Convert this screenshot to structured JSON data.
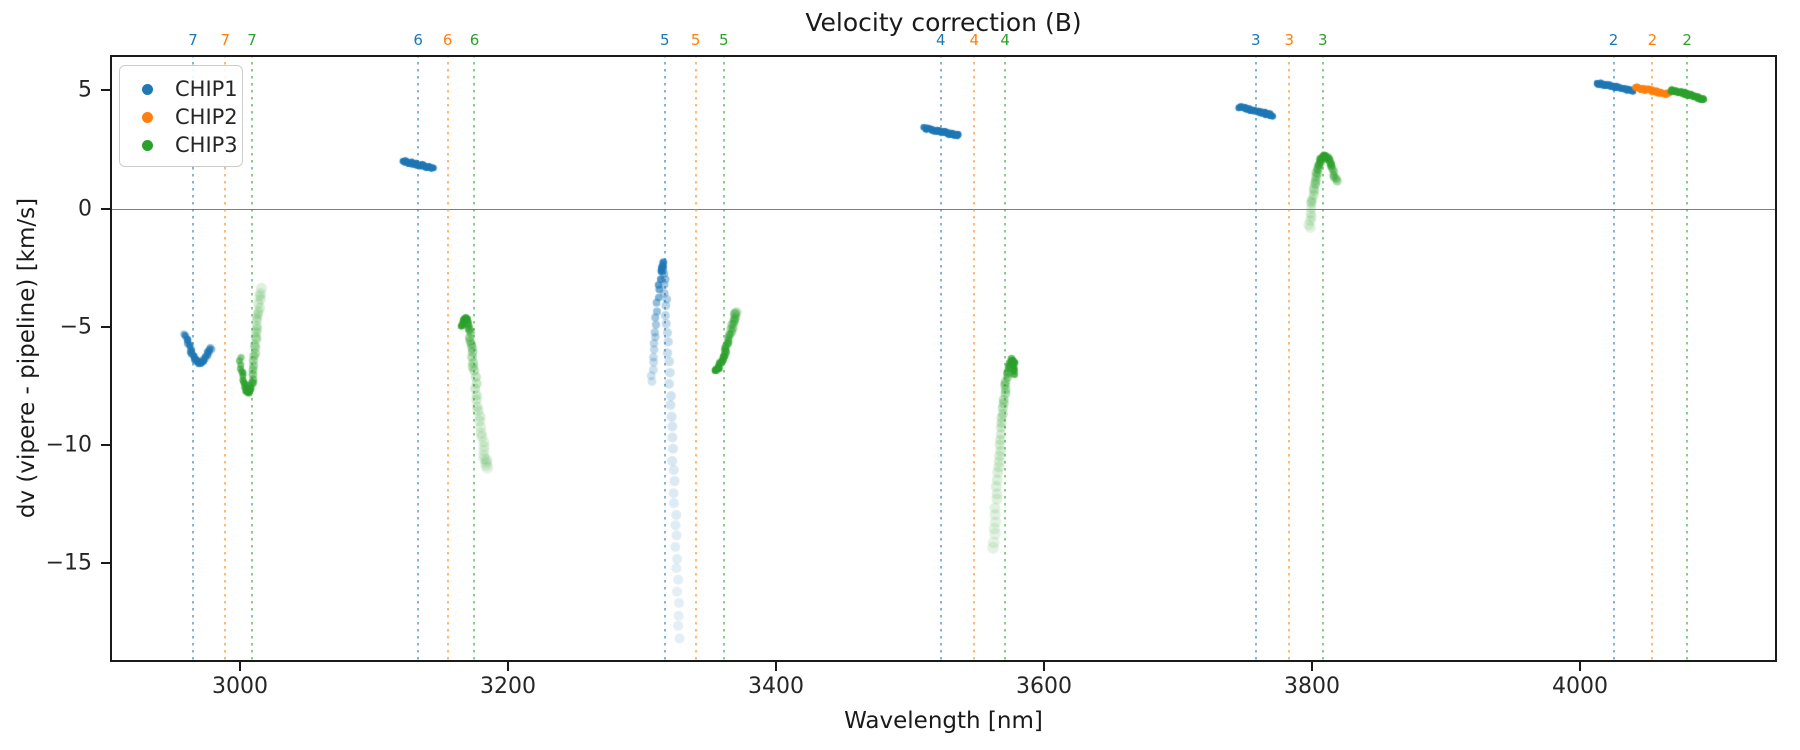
{
  "figure": {
    "title": "Velocity correction (B)"
  },
  "chart_data": {
    "type": "scatter",
    "title": "Velocity correction (B)",
    "xlabel": "Wavelength [nm]",
    "ylabel": "dv (vipere - pipeline) [km/s]",
    "xlim": [
      2903,
      4147
    ],
    "ylim": [
      -19.2,
      6.5
    ],
    "grid": false,
    "zero_line_y": 0,
    "xticks": [
      {
        "value": 3000,
        "label": "3000"
      },
      {
        "value": 3200,
        "label": "3200"
      },
      {
        "value": 3400,
        "label": "3400"
      },
      {
        "value": 3600,
        "label": "3600"
      },
      {
        "value": 3800,
        "label": "3800"
      },
      {
        "value": 4000,
        "label": "4000"
      }
    ],
    "yticks": [
      {
        "value": 5,
        "label": "5"
      },
      {
        "value": 0,
        "label": "0"
      },
      {
        "value": -5,
        "label": "−5"
      },
      {
        "value": -10,
        "label": "−10"
      },
      {
        "value": -15,
        "label": "−15"
      }
    ],
    "colors": {
      "CHIP1": "#1f77b4",
      "CHIP2": "#ff7f0e",
      "CHIP3": "#2ca02c"
    },
    "legend": {
      "position": "upper-left",
      "entries": [
        "CHIP1",
        "CHIP2",
        "CHIP3"
      ]
    },
    "order_markers": [
      {
        "order": "7",
        "chip": "CHIP1",
        "wavelength": 2965
      },
      {
        "order": "7",
        "chip": "CHIP2",
        "wavelength": 2989
      },
      {
        "order": "7",
        "chip": "CHIP3",
        "wavelength": 3009
      },
      {
        "order": "6",
        "chip": "CHIP1",
        "wavelength": 3133
      },
      {
        "order": "6",
        "chip": "CHIP2",
        "wavelength": 3155
      },
      {
        "order": "6",
        "chip": "CHIP3",
        "wavelength": 3175
      },
      {
        "order": "5",
        "chip": "CHIP1",
        "wavelength": 3317
      },
      {
        "order": "5",
        "chip": "CHIP2",
        "wavelength": 3340
      },
      {
        "order": "5",
        "chip": "CHIP3",
        "wavelength": 3361
      },
      {
        "order": "4",
        "chip": "CHIP1",
        "wavelength": 3523
      },
      {
        "order": "4",
        "chip": "CHIP2",
        "wavelength": 3548
      },
      {
        "order": "4",
        "chip": "CHIP3",
        "wavelength": 3571
      },
      {
        "order": "3",
        "chip": "CHIP1",
        "wavelength": 3758
      },
      {
        "order": "3",
        "chip": "CHIP2",
        "wavelength": 3783
      },
      {
        "order": "3",
        "chip": "CHIP3",
        "wavelength": 3808
      },
      {
        "order": "2",
        "chip": "CHIP1",
        "wavelength": 4025
      },
      {
        "order": "2",
        "chip": "CHIP2",
        "wavelength": 4054
      },
      {
        "order": "2",
        "chip": "CHIP3",
        "wavelength": 4080
      }
    ],
    "series": [
      {
        "chip": "CHIP1",
        "order": "7",
        "n": 50,
        "path": [
          [
            2958.5,
            -5.35
          ],
          [
            2961,
            -5.6
          ],
          [
            2964,
            -6.1
          ],
          [
            2967,
            -6.45
          ],
          [
            2970,
            -6.55
          ],
          [
            2973,
            -6.45
          ],
          [
            2976,
            -6.1
          ],
          [
            2978.5,
            -5.9
          ]
        ],
        "alpha": [
          0.45,
          0.6,
          0.8,
          0.85,
          0.7,
          0.55,
          0.5
        ],
        "size": [
          3.5,
          3.5
        ]
      },
      {
        "chip": "CHIP1",
        "order": "6",
        "n": 55,
        "path": [
          [
            3122,
            2.0
          ],
          [
            3133,
            1.85
          ],
          [
            3144,
            1.72
          ]
        ],
        "alpha": [
          0.95,
          0.95
        ],
        "size": [
          3.3,
          3.3
        ]
      },
      {
        "chip": "CHIP1",
        "order": "5",
        "n": 62,
        "path": [
          [
            3307,
            -7.3
          ],
          [
            3308.5,
            -6.2
          ],
          [
            3310,
            -5.0
          ],
          [
            3312,
            -3.7
          ],
          [
            3314,
            -2.6
          ],
          [
            3315.5,
            -2.25
          ],
          [
            3317,
            -3.0
          ],
          [
            3318,
            -4.3
          ],
          [
            3319.5,
            -6.0
          ],
          [
            3321,
            -8.0
          ],
          [
            3322.5,
            -10.0
          ],
          [
            3324,
            -12.0
          ],
          [
            3325.5,
            -14.0
          ],
          [
            3326.5,
            -16.0
          ],
          [
            3327.5,
            -18.2
          ]
        ],
        "alpha": [
          0.2,
          0.3,
          0.5,
          0.95,
          0.5,
          0.3,
          0.22,
          0.18,
          0.15,
          0.13,
          0.12
        ],
        "size": [
          4.5,
          4.2,
          3.8,
          3.6,
          4.2,
          4.6,
          5,
          5,
          5,
          5
        ]
      },
      {
        "chip": "CHIP1",
        "order": "4",
        "n": 55,
        "path": [
          [
            3511,
            3.4
          ],
          [
            3524,
            3.25
          ],
          [
            3536,
            3.1
          ]
        ],
        "alpha": [
          0.95,
          0.95
        ],
        "size": [
          3.3,
          3.3
        ]
      },
      {
        "chip": "CHIP1",
        "order": "3",
        "n": 55,
        "path": [
          [
            3746,
            4.3
          ],
          [
            3758,
            4.12
          ],
          [
            3770,
            3.95
          ]
        ],
        "alpha": [
          0.95,
          0.95
        ],
        "size": [
          3.3,
          3.3
        ]
      },
      {
        "chip": "CHIP1",
        "order": "2",
        "n": 55,
        "path": [
          [
            4013,
            5.3
          ],
          [
            4026,
            5.15
          ],
          [
            4039,
            5.0
          ]
        ],
        "alpha": [
          0.95,
          0.95
        ],
        "size": [
          3.3,
          3.3
        ]
      },
      {
        "chip": "CHIP2",
        "order": "2",
        "n": 55,
        "path": [
          [
            4041,
            5.12
          ],
          [
            4054,
            4.98
          ],
          [
            4066,
            4.85
          ]
        ],
        "alpha": [
          0.95,
          0.95
        ],
        "size": [
          3.3,
          3.3
        ]
      },
      {
        "chip": "CHIP3",
        "order": "7",
        "n": 48,
        "path": [
          [
            3000,
            -6.35
          ],
          [
            3002.5,
            -7.1
          ],
          [
            3005,
            -7.7
          ],
          [
            3007,
            -7.8
          ],
          [
            3009,
            -7.3
          ],
          [
            3011,
            -6.2
          ],
          [
            3012.5,
            -5.2
          ],
          [
            3014,
            -4.3
          ],
          [
            3015.5,
            -3.4
          ]
        ],
        "alpha": [
          0.55,
          0.75,
          0.9,
          0.7,
          0.4,
          0.25,
          0.18,
          0.15
        ],
        "size": [
          3.5,
          3.5,
          3.5,
          4,
          4.5,
          5,
          5,
          5.5
        ]
      },
      {
        "chip": "CHIP3",
        "order": "6",
        "n": 48,
        "path": [
          [
            3165.5,
            -5.0
          ],
          [
            3167.5,
            -4.65
          ],
          [
            3169.5,
            -4.7
          ],
          [
            3171,
            -5.1
          ],
          [
            3173,
            -5.9
          ],
          [
            3175,
            -6.9
          ],
          [
            3177.5,
            -8.2
          ],
          [
            3180,
            -9.4
          ],
          [
            3182.5,
            -10.4
          ],
          [
            3184.5,
            -11.0
          ]
        ],
        "alpha": [
          0.8,
          0.85,
          0.6,
          0.45,
          0.32,
          0.22,
          0.16,
          0.13,
          0.12
        ],
        "size": [
          3.5,
          3.5,
          4,
          4.5,
          5,
          5,
          5.5,
          5.5,
          6
        ]
      },
      {
        "chip": "CHIP3",
        "order": "5",
        "n": 40,
        "path": [
          [
            3354,
            -6.85
          ],
          [
            3357,
            -6.75
          ],
          [
            3360,
            -6.4
          ],
          [
            3363,
            -5.9
          ],
          [
            3366,
            -5.3
          ],
          [
            3368.5,
            -4.75
          ],
          [
            3370.5,
            -4.35
          ]
        ],
        "alpha": [
          0.9,
          0.85,
          0.7,
          0.5,
          0.35,
          0.25
        ],
        "size": [
          3.5,
          3.5,
          4,
          4,
          4.5,
          5
        ]
      },
      {
        "chip": "CHIP3",
        "order": "4",
        "n": 50,
        "path": [
          [
            3562,
            -14.4
          ],
          [
            3564,
            -12.8
          ],
          [
            3566,
            -11.2
          ],
          [
            3567.5,
            -9.9
          ],
          [
            3569,
            -8.7
          ],
          [
            3571,
            -7.6
          ],
          [
            3573,
            -6.8
          ],
          [
            3575.5,
            -6.4
          ],
          [
            3577.5,
            -6.5
          ],
          [
            3578.5,
            -7.0
          ]
        ],
        "alpha": [
          0.12,
          0.14,
          0.17,
          0.2,
          0.3,
          0.45,
          0.7,
          0.9,
          0.8
        ],
        "size": [
          6,
          5.5,
          5.5,
          5,
          5,
          4.5,
          4,
          3.5,
          3.5
        ]
      },
      {
        "chip": "CHIP3",
        "order": "3",
        "n": 50,
        "path": [
          [
            3798,
            -0.85
          ],
          [
            3800,
            0.2
          ],
          [
            3802,
            1.0
          ],
          [
            3804.5,
            1.7
          ],
          [
            3807,
            2.1
          ],
          [
            3809.5,
            2.25
          ],
          [
            3812,
            2.1
          ],
          [
            3815,
            1.75
          ],
          [
            3818,
            1.15
          ]
        ],
        "alpha": [
          0.13,
          0.18,
          0.25,
          0.4,
          0.7,
          0.85,
          0.6,
          0.45,
          0.4
        ],
        "size": [
          5.5,
          5,
          5,
          4.5,
          4,
          3.5,
          4,
          4,
          4.5
        ]
      },
      {
        "chip": "CHIP3",
        "order": "2",
        "n": 55,
        "path": [
          [
            4068,
            5.0
          ],
          [
            4080,
            4.85
          ],
          [
            4092,
            4.62
          ]
        ],
        "alpha": [
          0.95,
          0.95
        ],
        "size": [
          3.3,
          3.3
        ]
      }
    ]
  }
}
